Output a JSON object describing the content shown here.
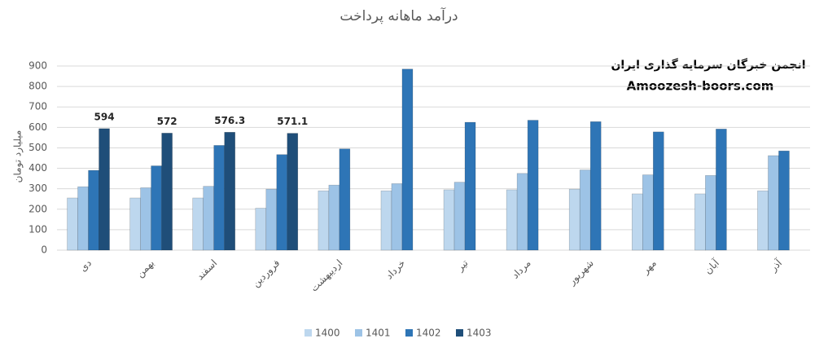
{
  "chart_data": {
    "type": "bar",
    "title": "درآمد ماهانه پرداخت",
    "y_label": "میلیارد تومان",
    "annotations": [
      "انجمن خبرگان سرمایه گذاری ایران",
      "Amoozesh-boors.com"
    ],
    "categories": [
      "دی",
      "بهمن",
      "اسفند",
      "فروردین",
      "اردیبهشت",
      "خرداد",
      "تیر",
      "مرداد",
      "شهریور",
      "مهر",
      "آبان",
      "آذر"
    ],
    "series": [
      {
        "name": "1400",
        "color": "#bdd7ee",
        "values": [
          255,
          255,
          255,
          205,
          290,
          290,
          295,
          295,
          298,
          275,
          275,
          290
        ]
      },
      {
        "name": "1401",
        "color": "#9dc3e6",
        "values": [
          310,
          305,
          312,
          298,
          318,
          325,
          332,
          375,
          392,
          368,
          365,
          462
        ]
      },
      {
        "name": "1402",
        "color": "#2e75b6",
        "values": [
          390,
          412,
          512,
          467,
          495,
          885,
          625,
          635,
          628,
          578,
          592,
          485
        ]
      },
      {
        "name": "1403",
        "color": "#1f4e79",
        "values": [
          594,
          572,
          576.3,
          571.1,
          null,
          null,
          null,
          null,
          null,
          null,
          null,
          null
        ]
      }
    ],
    "labeled_series": "1403",
    "ylim": [
      0,
      900
    ],
    "yticks": [
      0,
      100,
      200,
      300,
      400,
      500,
      600,
      700,
      800,
      900
    ],
    "grid": true,
    "legend": "bottom"
  }
}
